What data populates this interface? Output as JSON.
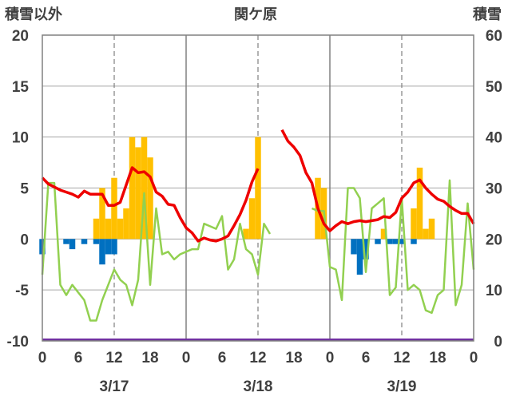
{
  "chart_data": {
    "type": "bar+line",
    "title": "関ケ原",
    "left_axis_label": "積雪以外",
    "right_axis_label": "積雪",
    "ylim_left": [
      -10,
      20
    ],
    "ylim_right": [
      0,
      60
    ],
    "y_ticks_left": [
      "20",
      "15",
      "10",
      "5",
      "0",
      "-5",
      "-10"
    ],
    "y_ticks_right": [
      "60",
      "50",
      "40",
      "30",
      "20",
      "10",
      "0"
    ],
    "x_ticks": [
      "0",
      "6",
      "12",
      "18",
      "0",
      "6",
      "12",
      "18",
      "0",
      "6",
      "12",
      "18",
      "0"
    ],
    "date_labels": [
      {
        "label": "3/17",
        "hour": 12
      },
      {
        "label": "3/18",
        "hour": 36
      },
      {
        "label": "3/19",
        "hour": 60
      }
    ],
    "colors": {
      "precip_pos": "#ffc000",
      "precip_neg": "#0070c0",
      "temperature": "#ee0000",
      "snow_depth": "#92d050",
      "baseline": "#7030a0"
    },
    "precip_positive": [
      [
        9,
        2
      ],
      [
        10,
        5
      ],
      [
        11,
        2
      ],
      [
        12,
        6
      ],
      [
        13,
        2
      ],
      [
        14,
        3
      ],
      [
        15,
        10
      ],
      [
        16,
        9
      ],
      [
        17,
        10
      ],
      [
        18,
        8
      ],
      [
        34,
        1
      ],
      [
        35,
        4
      ],
      [
        36,
        10
      ],
      [
        46,
        6
      ],
      [
        47,
        5
      ],
      [
        57,
        1
      ],
      [
        62,
        3
      ],
      [
        63,
        7
      ],
      [
        64,
        1
      ],
      [
        65,
        2
      ]
    ],
    "precip_negative": [
      [
        0,
        -1.5
      ],
      [
        4,
        -0.5
      ],
      [
        5,
        -1
      ],
      [
        7,
        -0.5
      ],
      [
        9,
        -0.5
      ],
      [
        10,
        -2.5
      ],
      [
        11,
        -1.5
      ],
      [
        12,
        -1.5
      ],
      [
        52,
        -1.5
      ],
      [
        53,
        -3.5
      ],
      [
        54,
        -2
      ],
      [
        56,
        -0.5
      ],
      [
        58,
        -0.5
      ],
      [
        59,
        -0.5
      ],
      [
        60,
        -0.5
      ],
      [
        62,
        -0.5
      ]
    ],
    "temperature": [
      [
        [
          0,
          6
        ],
        [
          1,
          5.4
        ],
        [
          2,
          5.1
        ],
        [
          3,
          4.8
        ],
        [
          4,
          4.6
        ],
        [
          5,
          4.4
        ],
        [
          6,
          4.1
        ],
        [
          7,
          4.7
        ],
        [
          8,
          4.4
        ],
        [
          9,
          4.4
        ],
        [
          10,
          4.4
        ],
        [
          11,
          3.3
        ],
        [
          12,
          3.3
        ],
        [
          13,
          3.6
        ],
        [
          14,
          5.3
        ],
        [
          15,
          7
        ],
        [
          16,
          6.5
        ],
        [
          17,
          6.6
        ],
        [
          18,
          6.1
        ],
        [
          19,
          4.6
        ],
        [
          20,
          4.2
        ],
        [
          21,
          3.4
        ],
        [
          22,
          3.3
        ],
        [
          23,
          2.1
        ],
        [
          24,
          1.1
        ],
        [
          25,
          0.6
        ],
        [
          26,
          -0.2
        ],
        [
          27,
          0.1
        ],
        [
          28,
          -0.1
        ],
        [
          29,
          -0.2
        ],
        [
          30,
          0
        ],
        [
          31,
          0.3
        ],
        [
          32,
          1.3
        ],
        [
          33,
          2.4
        ],
        [
          34,
          3.8
        ],
        [
          35,
          5.6
        ],
        [
          36,
          6.9
        ]
      ],
      [
        [
          40,
          10.7
        ],
        [
          41,
          9.6
        ],
        [
          42,
          9
        ],
        [
          43,
          8.2
        ],
        [
          44,
          6.5
        ],
        [
          45,
          5.5
        ],
        [
          46,
          3
        ],
        [
          47,
          1.5
        ],
        [
          48,
          0.8
        ],
        [
          49,
          1.3
        ],
        [
          50,
          1.7
        ],
        [
          51,
          1.5
        ],
        [
          52,
          1.7
        ],
        [
          53,
          1.8
        ],
        [
          54,
          1.7
        ],
        [
          55,
          1.8
        ],
        [
          56,
          1.9
        ],
        [
          57,
          2.2
        ],
        [
          58,
          2.1
        ],
        [
          59,
          2.6
        ],
        [
          60,
          4
        ],
        [
          61,
          4.6
        ],
        [
          62,
          5.5
        ],
        [
          63,
          5.8
        ],
        [
          64,
          5
        ],
        [
          65,
          4.4
        ],
        [
          66,
          3.9
        ],
        [
          67,
          3.7
        ],
        [
          68,
          3.2
        ],
        [
          69,
          2.8
        ],
        [
          70,
          2.5
        ],
        [
          71,
          2.5
        ],
        [
          72,
          1.5
        ]
      ]
    ],
    "snow_depth": [
      [
        [
          0,
          13
        ],
        [
          1,
          31
        ],
        [
          2,
          31
        ],
        [
          3,
          11
        ],
        [
          4,
          9
        ],
        [
          5,
          11
        ],
        [
          6,
          9.5
        ],
        [
          7,
          8
        ],
        [
          8,
          4
        ],
        [
          9,
          4
        ],
        [
          10,
          8
        ],
        [
          11,
          11
        ],
        [
          12,
          14
        ],
        [
          13,
          12
        ],
        [
          14,
          11
        ],
        [
          15,
          7
        ],
        [
          16,
          12
        ],
        [
          17,
          29
        ],
        [
          18,
          11
        ],
        [
          19,
          26
        ],
        [
          20,
          17
        ],
        [
          21,
          17.5
        ],
        [
          22,
          16
        ],
        [
          23,
          17
        ],
        [
          24,
          17.5
        ],
        [
          25,
          18
        ],
        [
          26,
          18
        ],
        [
          27,
          23
        ],
        [
          28,
          22.5
        ],
        [
          29,
          22
        ],
        [
          30,
          24.5
        ],
        [
          31,
          14
        ],
        [
          32,
          16
        ],
        [
          33,
          23
        ],
        [
          34,
          18
        ],
        [
          35,
          17
        ],
        [
          36,
          13
        ],
        [
          37,
          23
        ],
        [
          38,
          21
        ]
      ],
      [
        [
          45,
          26
        ],
        [
          46,
          25.5
        ],
        [
          47,
          25.5
        ],
        [
          48,
          14.5
        ],
        [
          49,
          14
        ],
        [
          50,
          8
        ],
        [
          51,
          30
        ],
        [
          52,
          30
        ],
        [
          53,
          28
        ],
        [
          54,
          13.5
        ],
        [
          55,
          26
        ],
        [
          56,
          27
        ],
        [
          57,
          28
        ],
        [
          58,
          9
        ],
        [
          59,
          10.5
        ],
        [
          60,
          28
        ],
        [
          61,
          10
        ],
        [
          62,
          11
        ],
        [
          63,
          10
        ],
        [
          64,
          6
        ],
        [
          65,
          5.5
        ],
        [
          66,
          9
        ],
        [
          67,
          10
        ],
        [
          68,
          31.5
        ],
        [
          69,
          7
        ],
        [
          70,
          11
        ],
        [
          71,
          27
        ],
        [
          72,
          14
        ]
      ]
    ]
  }
}
